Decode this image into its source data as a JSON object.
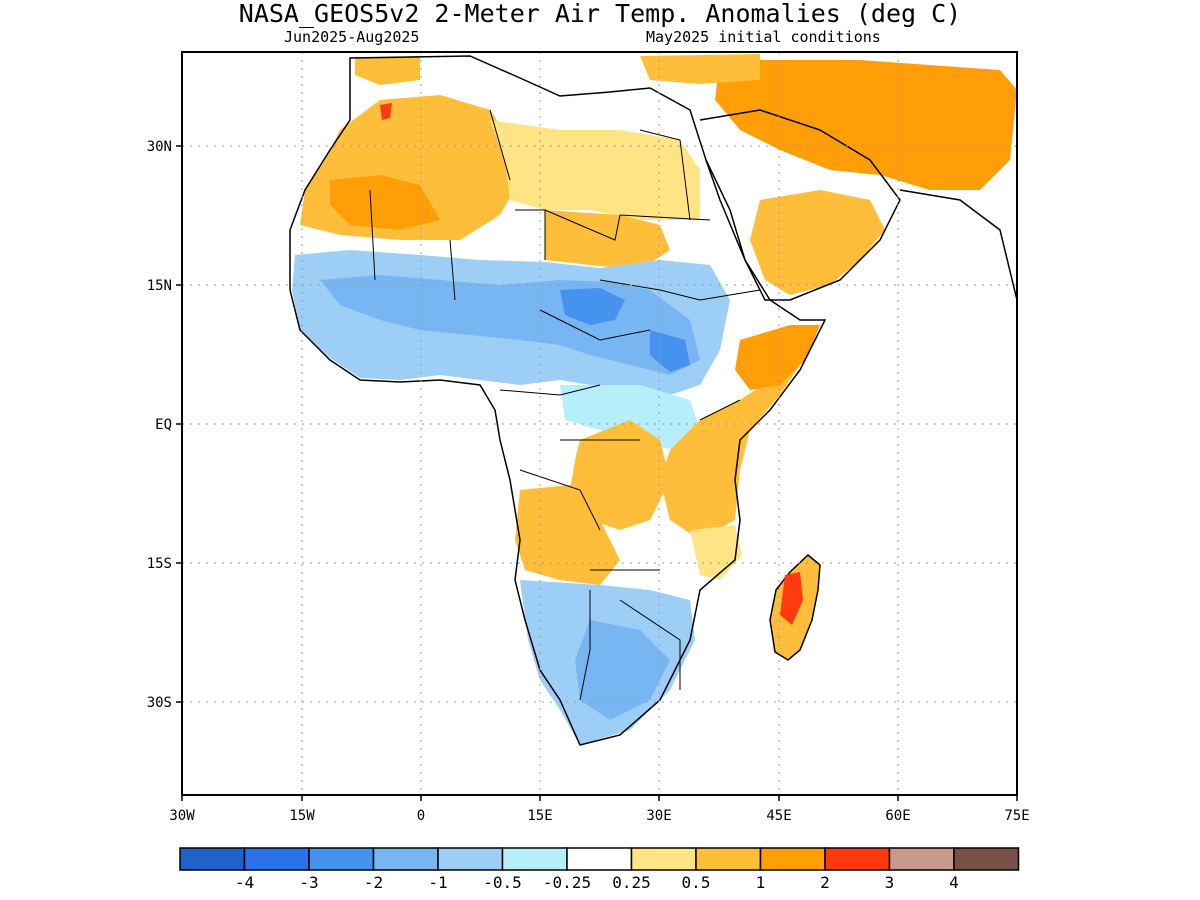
{
  "title": "NASA_GEOS5v2 2-Meter Air Temp. Anomalies (deg C)",
  "subtitle_left": "Jun2025-Aug2025",
  "subtitle_right": "May2025 initial conditions",
  "lon_labels": [
    "30W",
    "15W",
    "0",
    "15E",
    "30E",
    "45E",
    "60E",
    "75E"
  ],
  "lat_labels": [
    "30N",
    "15N",
    "EQ",
    "15S",
    "30S"
  ],
  "colorbar": {
    "colors": [
      "#1f62c8",
      "#2a72e6",
      "#4592ef",
      "#78b5f3",
      "#9dcff6",
      "#b6eefa",
      "#ffffff",
      "#ffe485",
      "#ffbe3a",
      "#ff9e06",
      "#ff3a11",
      "#c89a8c",
      "#7a5046"
    ],
    "labels": [
      "-4",
      "-3",
      "-2",
      "-1",
      "-0.5",
      "-0.25",
      "0.25",
      "0.5",
      "1",
      "2",
      "3",
      "4"
    ]
  },
  "legend_colors": {
    "strong_cold": "#4592ef",
    "cold": "#78b5f3",
    "cool": "#9dcff6",
    "slight_cool": "#b6eefa",
    "neutral": "#ffffff",
    "slight_warm": "#ffe485",
    "warm": "#ffbe3a",
    "hot": "#ff9e06",
    "very_hot": "#ff3a11"
  }
}
